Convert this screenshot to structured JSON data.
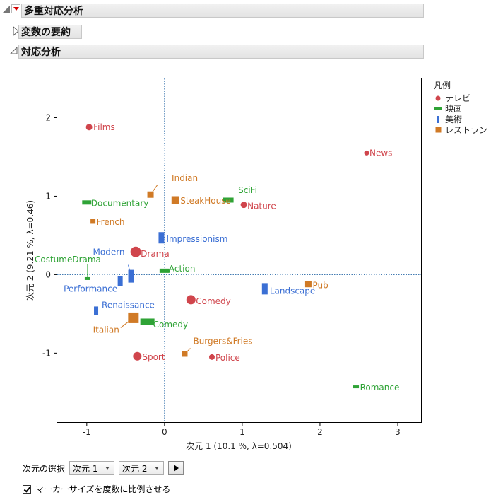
{
  "outline": {
    "main_title": "多重対応分析",
    "summary_title": "変数の要約",
    "ca_title": "対応分析"
  },
  "legend": {
    "title": "凡例",
    "items": [
      {
        "label": "テレビ",
        "color": "#d0454c",
        "marker": "circle"
      },
      {
        "label": "映画",
        "color": "#2fa336",
        "marker": "hbar"
      },
      {
        "label": "美術",
        "color": "#3b6fd4",
        "marker": "vbar"
      },
      {
        "label": "レストラン",
        "color": "#d07a26",
        "marker": "square"
      }
    ]
  },
  "chart_data": {
    "type": "scatter",
    "xlabel": "次元 1  (10.1 %, λ=0.504)",
    "ylabel": "次元 2  (9.21 %, λ=0.46)",
    "xlim": [
      -1.38,
      3.3
    ],
    "ylim": [
      -1.88,
      2.5
    ],
    "xticks": [
      "-1",
      "0",
      "1",
      "2",
      "3"
    ],
    "yticks": [
      "-1",
      "0",
      "1",
      "2"
    ],
    "reference_lines": "dotted at x=0 and y=0",
    "series": [
      {
        "name": "テレビ",
        "points": [
          {
            "label": "Films",
            "x": -0.97,
            "y": 1.88
          },
          {
            "label": "News",
            "x": 2.6,
            "y": 1.55
          },
          {
            "label": "Nature",
            "x": 1.02,
            "y": 0.89
          },
          {
            "label": "Drama",
            "x": -0.37,
            "y": 0.29
          },
          {
            "label": "Comedy",
            "x": 0.34,
            "y": -0.32
          },
          {
            "label": "Sport",
            "x": -0.35,
            "y": -1.04
          },
          {
            "label": "Police",
            "x": 0.61,
            "y": -1.05
          }
        ]
      },
      {
        "name": "映画",
        "points": [
          {
            "label": "Documentary",
            "x": -1.0,
            "y": 0.92
          },
          {
            "label": "SciFi",
            "x": 0.82,
            "y": 0.95
          },
          {
            "label": "CostumeDrama",
            "x": -0.99,
            "y": -0.05
          },
          {
            "label": "Action",
            "x": 0.0,
            "y": 0.05
          },
          {
            "label": "Comedy",
            "x": -0.22,
            "y": -0.6
          },
          {
            "label": "Romance",
            "x": 2.46,
            "y": -1.43
          }
        ]
      },
      {
        "name": "美術",
        "points": [
          {
            "label": "Impressionism",
            "x": -0.04,
            "y": 0.47
          },
          {
            "label": "Modern",
            "x": -0.43,
            "y": -0.02
          },
          {
            "label": "Performance",
            "x": -0.57,
            "y": -0.08
          },
          {
            "label": "Renaissance",
            "x": -0.88,
            "y": -0.46
          },
          {
            "label": "Landscape",
            "x": 1.29,
            "y": -0.18
          }
        ]
      },
      {
        "name": "レストラン",
        "points": [
          {
            "label": "Indian",
            "x": -0.18,
            "y": 1.02
          },
          {
            "label": "SteakHouse",
            "x": 0.14,
            "y": 0.95
          },
          {
            "label": "French",
            "x": -0.92,
            "y": 0.68
          },
          {
            "label": "Italian",
            "x": -0.4,
            "y": -0.55
          },
          {
            "label": "Pub",
            "x": 1.85,
            "y": -0.12
          },
          {
            "label": "Burgers&Fries",
            "x": 0.26,
            "y": -1.01
          }
        ]
      }
    ]
  },
  "controls": {
    "select_label": "次元の選択",
    "dim_x": "次元 1",
    "dim_y": "次元 2",
    "checkbox_label": "マーカーサイズを度数に比例させる",
    "checkbox_checked": true
  }
}
